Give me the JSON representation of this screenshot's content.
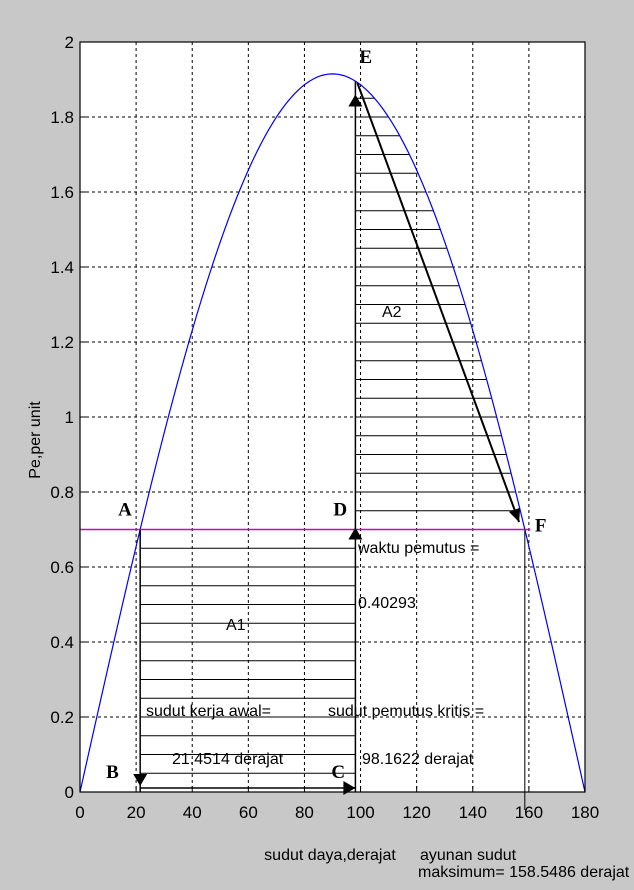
{
  "chart_data": {
    "type": "line",
    "title": "",
    "xlabel": "sudut daya,derajat",
    "ylabel": "Pe,per unit",
    "xlim": [
      0,
      180
    ],
    "ylim": [
      0,
      2
    ],
    "x_ticks": [
      "0",
      "20",
      "40",
      "60",
      "80",
      "100",
      "120",
      "140",
      "160",
      "180"
    ],
    "y_ticks": [
      "0",
      "0.2",
      "0.4",
      "0.6",
      "0.8",
      "1",
      "1.2",
      "1.4",
      "1.6",
      "1.8",
      "2"
    ],
    "grid": true,
    "curve": {
      "name": "Pe",
      "function": "Pmax*sin(delta)",
      "pmax": 1.915,
      "color": "#0000ff"
    },
    "pm_line": {
      "y": 0.7,
      "color": "#cc00cc"
    },
    "areas": [
      {
        "label": "A1",
        "x_from": 21.4514,
        "x_to": 98.1622,
        "y_from": 0,
        "y_to": 0.7
      },
      {
        "label": "A2",
        "x_from": 98.1622,
        "x_to": 158.5486,
        "y_from": 0.7,
        "y_to": "curve"
      }
    ],
    "points": [
      {
        "label": "A",
        "x": 21.4514,
        "y": 0.7
      },
      {
        "label": "B",
        "x": 21.4514,
        "y": 0
      },
      {
        "label": "C",
        "x": 98.1622,
        "y": 0
      },
      {
        "label": "D",
        "x": 98.1622,
        "y": 0.7
      },
      {
        "label": "E",
        "x": 98.1622,
        "y": 1.896
      },
      {
        "label": "F",
        "x": 158.5486,
        "y": 0.7
      }
    ],
    "annotations": {
      "waktu_pemutus_label": "waktu pemutus =",
      "waktu_pemutus_value": "0.40293",
      "sudut_kerja_label": "sudut kerja awal=",
      "sudut_kerja_value": "21.4514 derajat",
      "sudut_pemutus_label": "sudut pemutus kritis =",
      "sudut_pemutus_value": "98.1622 derajat",
      "ayunan_label": "ayunan sudut",
      "ayunan_value": "maksimum= 158.5486 derajat"
    }
  }
}
